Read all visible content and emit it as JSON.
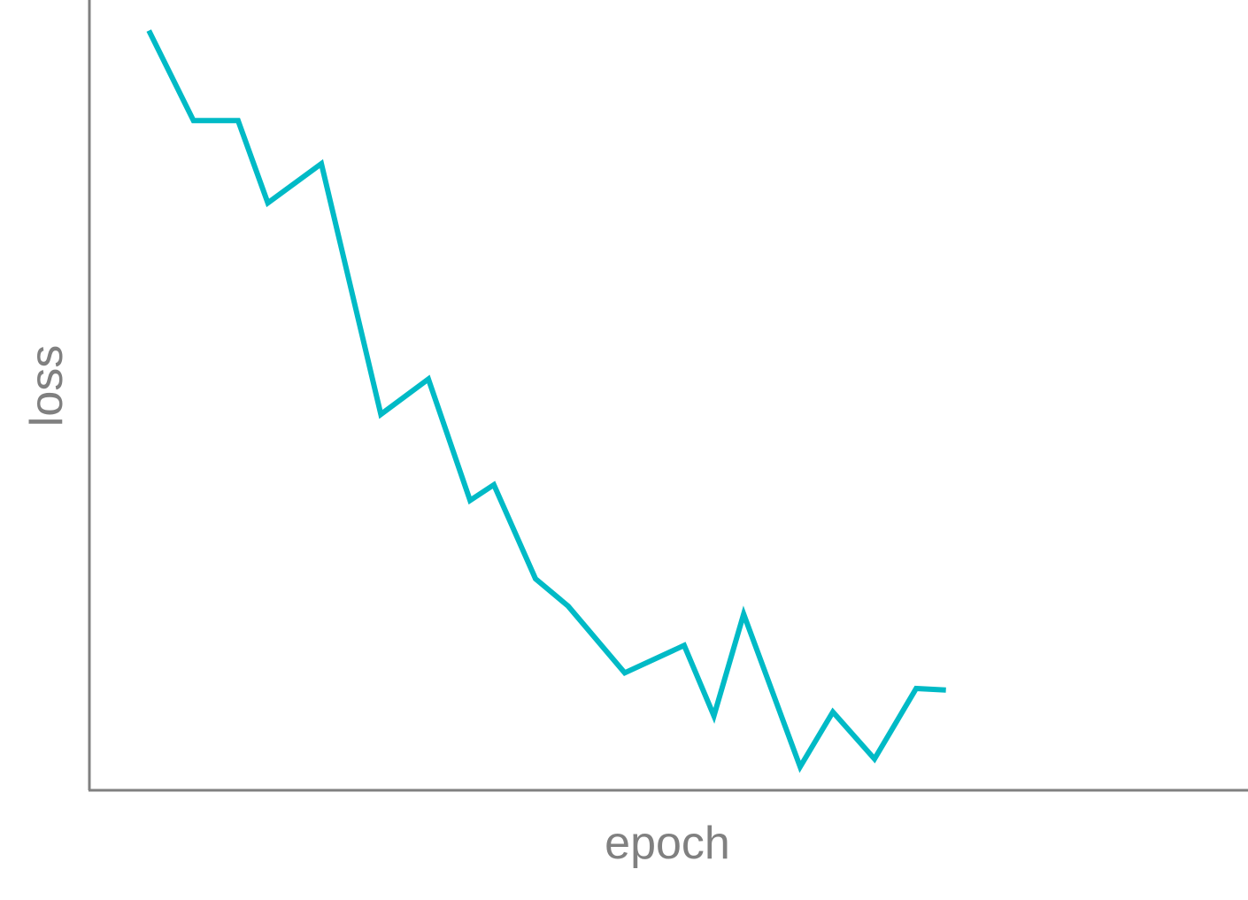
{
  "chart_data": {
    "type": "line",
    "title": "",
    "xlabel": "epoch",
    "ylabel": "loss",
    "grid": false,
    "legend": "none",
    "x_ticks_shown": false,
    "y_ticks_shown": false,
    "xlim": [
      0,
      40
    ],
    "ylim": [
      0,
      1
    ],
    "series": [
      {
        "color": "#00bac6",
        "x": [
          2,
          3.5,
          5,
          6,
          7.8,
          9.8,
          11.4,
          12.8,
          13.6,
          15,
          16.1,
          18,
          20,
          21,
          22,
          23.9,
          25,
          26.4,
          27.8,
          28.8
        ],
        "y": [
          0.97,
          0.855,
          0.855,
          0.75,
          0.8,
          0.48,
          0.525,
          0.37,
          0.39,
          0.27,
          0.235,
          0.15,
          0.185,
          0.095,
          0.225,
          0.03,
          0.1,
          0.04,
          0.13,
          0.128
        ]
      }
    ]
  }
}
